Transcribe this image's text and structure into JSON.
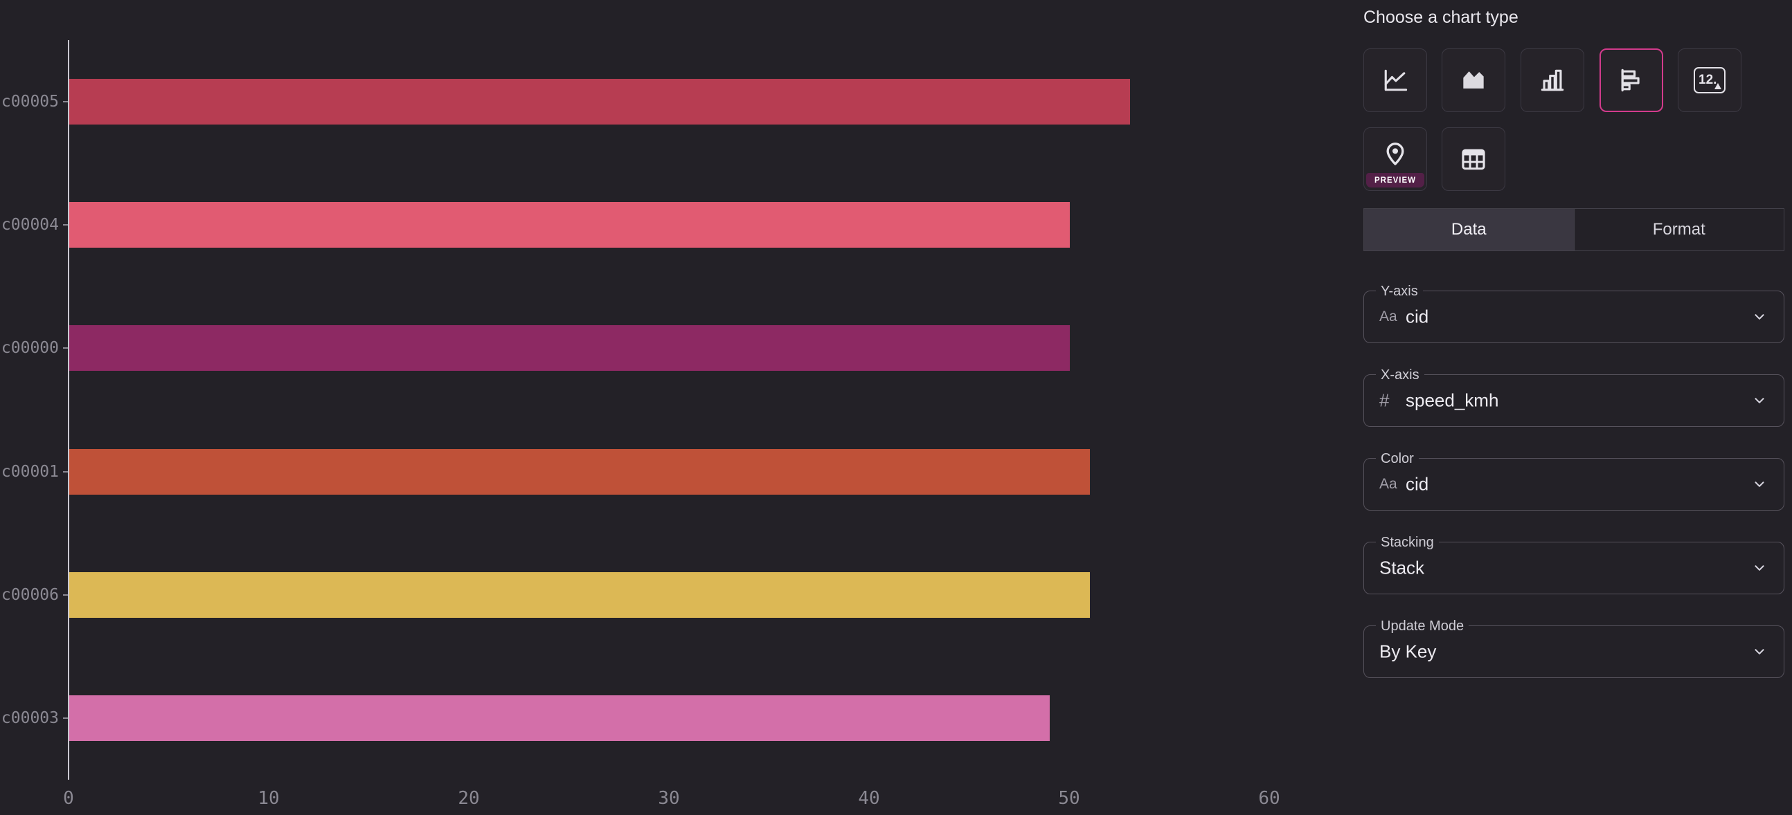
{
  "chart_data": {
    "type": "bar",
    "orientation": "horizontal",
    "categories": [
      "c00005",
      "c00004",
      "c00000",
      "c00001",
      "c00006",
      "c00003"
    ],
    "values": [
      53,
      50,
      50,
      51,
      51,
      49
    ],
    "bar_colors": [
      "#b73d52",
      "#e15b72",
      "#8d2963",
      "#bf5138",
      "#dcb855",
      "#d36fa9"
    ],
    "x_field": "speed_kmh",
    "y_field": "cid",
    "xlim": [
      0,
      60
    ],
    "x_ticks": [
      0,
      10,
      20,
      30,
      40,
      50,
      60
    ],
    "title": "",
    "xlabel": "",
    "ylabel": "",
    "grid": false,
    "legend": "none"
  },
  "panel": {
    "title": "Choose a chart type",
    "chart_types": [
      {
        "name": "line",
        "selected": false
      },
      {
        "name": "area",
        "selected": false
      },
      {
        "name": "bar",
        "selected": false
      },
      {
        "name": "horizontal-bar",
        "selected": true
      },
      {
        "name": "big-number",
        "selected": false
      },
      {
        "name": "map",
        "selected": false
      },
      {
        "name": "table",
        "selected": false
      }
    ],
    "big_number_glyph": "12.",
    "preview_badge": "PREVIEW",
    "tabs": [
      {
        "label": "Data",
        "active": true
      },
      {
        "label": "Format",
        "active": false
      }
    ],
    "icons": {
      "text": "Aa",
      "number": "#"
    },
    "fields": [
      {
        "label": "Y-axis",
        "icon": "text",
        "value": "cid"
      },
      {
        "label": "X-axis",
        "icon": "number",
        "value": "speed_kmh"
      },
      {
        "label": "Color",
        "icon": "text",
        "value": "cid"
      },
      {
        "label": "Stacking",
        "icon": "none",
        "value": "Stack"
      },
      {
        "label": "Update Mode",
        "icon": "none",
        "value": "By Key"
      }
    ]
  },
  "colors": {
    "background": "#232127",
    "accent": "#d23b8c",
    "axis_line": "#cac8d0",
    "axis_text": "#8b8993",
    "field_border": "#56525c",
    "tab_active_bg": "#3a3741",
    "badge_bg": "#532047"
  }
}
